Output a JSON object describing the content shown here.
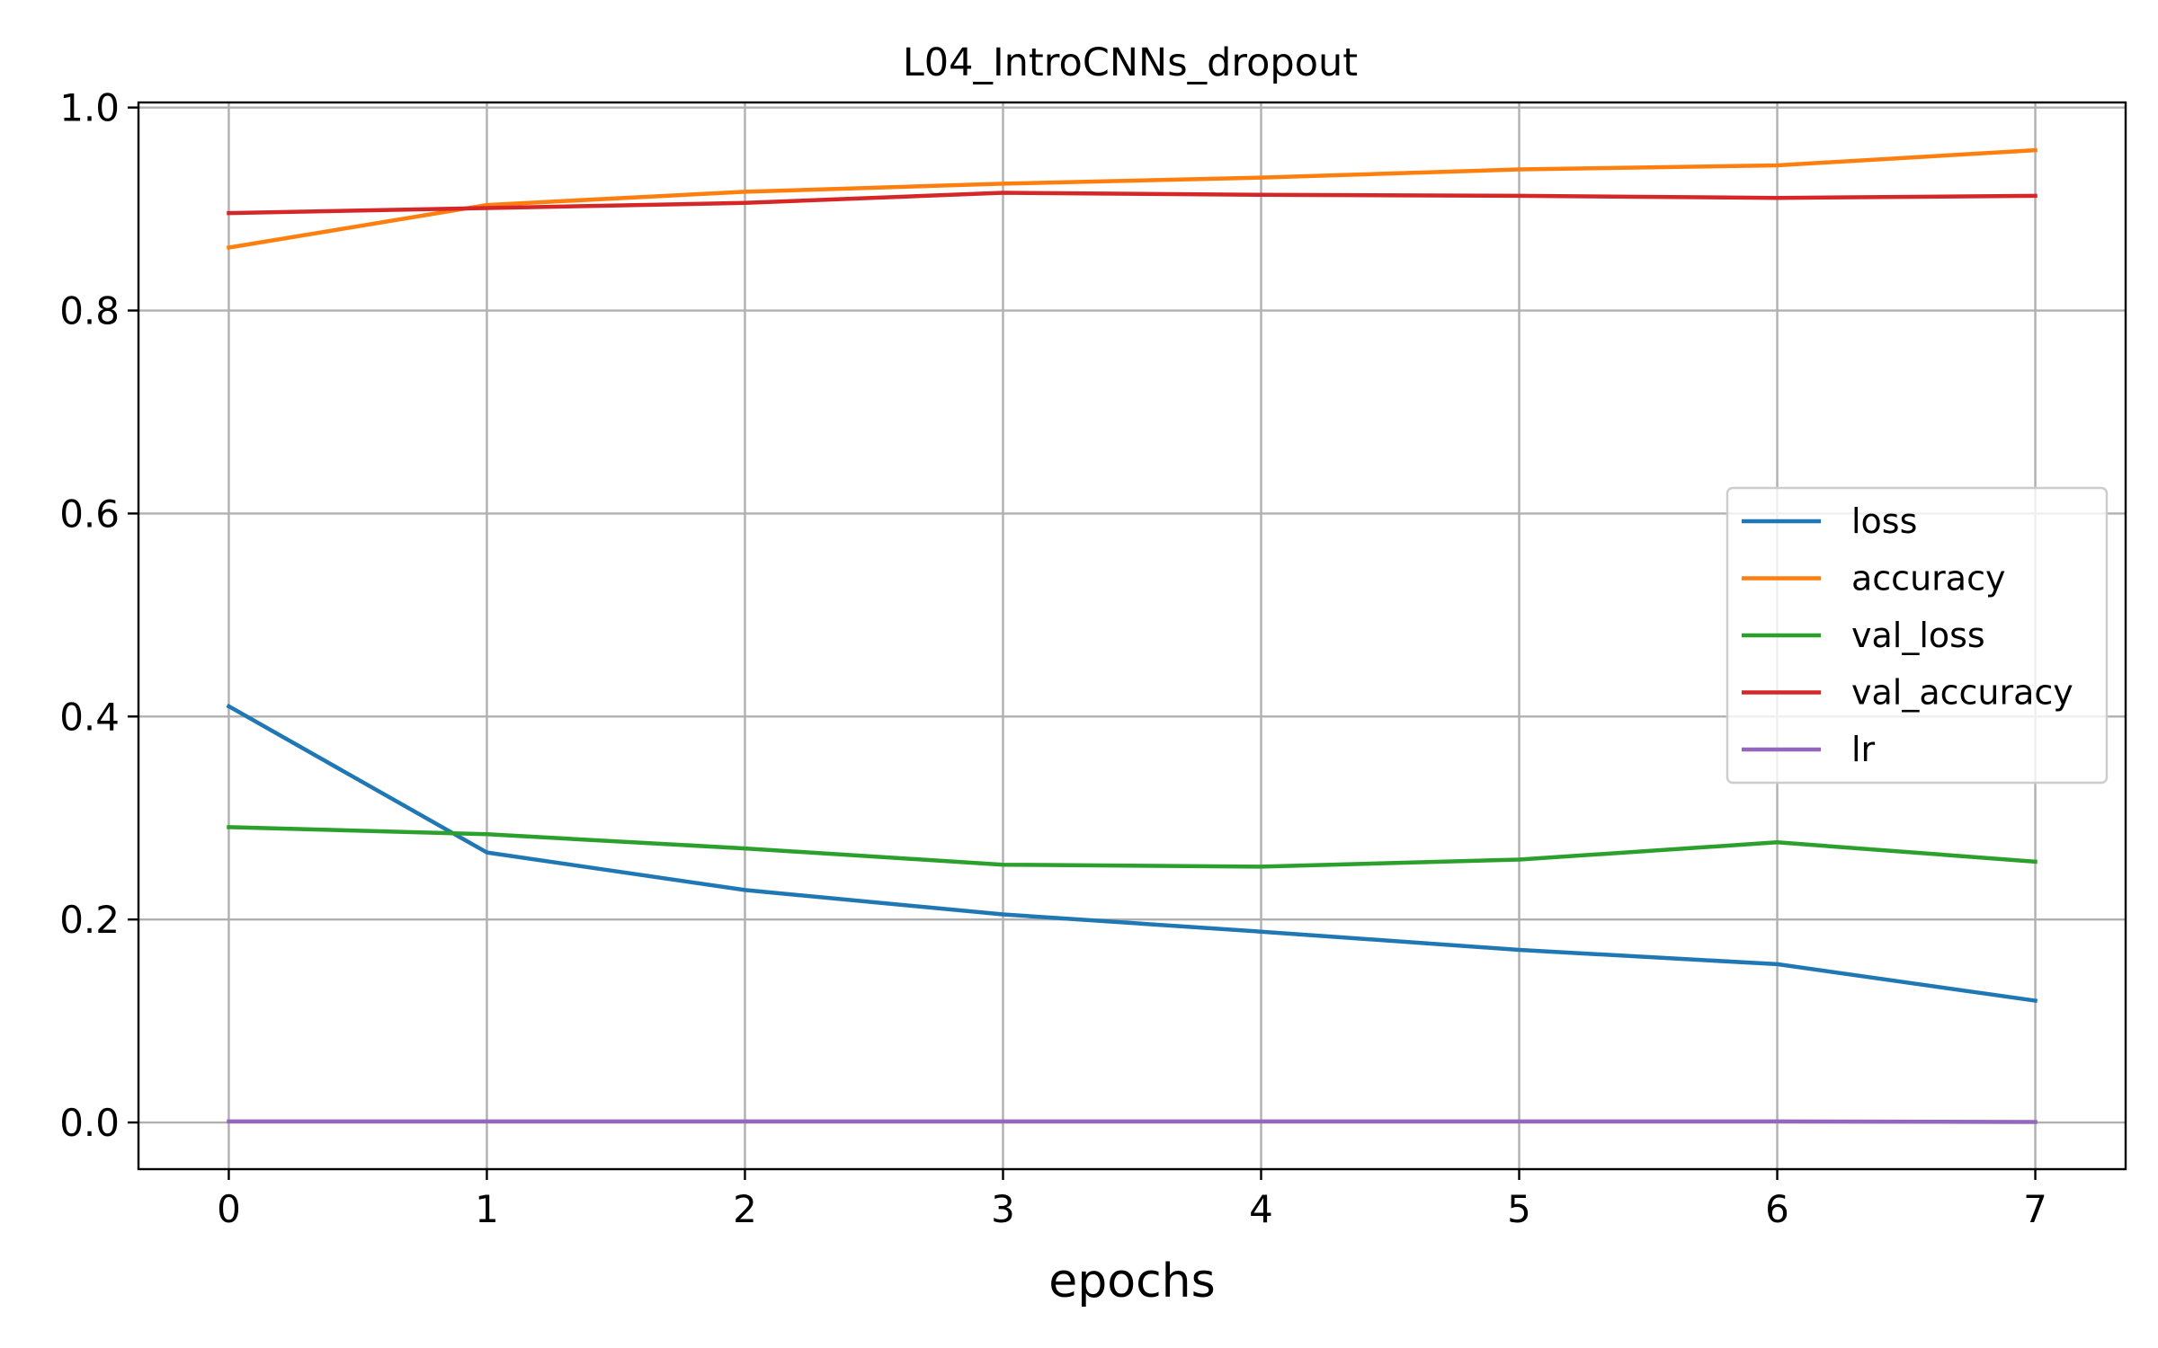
{
  "chart_data": {
    "type": "line",
    "title": "L04_IntroCNNs_dropout",
    "xlabel": "epochs",
    "ylabel": "",
    "x": [
      0,
      1,
      2,
      3,
      4,
      5,
      6,
      7
    ],
    "xlim": [
      -0.35,
      7.35
    ],
    "ylim": [
      -0.046,
      1.005
    ],
    "x_ticks": [
      "0",
      "1",
      "2",
      "3",
      "4",
      "5",
      "6",
      "7"
    ],
    "y_ticks": [
      "0.0",
      "0.2",
      "0.4",
      "0.6",
      "0.8",
      "1.0"
    ],
    "grid": true,
    "legend_position": "center-right",
    "series": [
      {
        "name": "loss",
        "color": "#1f77b4",
        "values": [
          0.41,
          0.266,
          0.229,
          0.205,
          0.188,
          0.17,
          0.156,
          0.12
        ]
      },
      {
        "name": "accuracy",
        "color": "#ff7f0e",
        "values": [
          0.862,
          0.904,
          0.917,
          0.925,
          0.931,
          0.939,
          0.943,
          0.958
        ]
      },
      {
        "name": "val_loss",
        "color": "#2ca02c",
        "values": [
          0.291,
          0.284,
          0.27,
          0.254,
          0.252,
          0.259,
          0.276,
          0.257
        ]
      },
      {
        "name": "val_accuracy",
        "color": "#d62728",
        "values": [
          0.896,
          0.901,
          0.906,
          0.916,
          0.914,
          0.913,
          0.911,
          0.913
        ]
      },
      {
        "name": "lr",
        "color": "#9467bd",
        "values": [
          0.001,
          0.001,
          0.001,
          0.001,
          0.001,
          0.001,
          0.001,
          0.0005
        ]
      }
    ]
  }
}
